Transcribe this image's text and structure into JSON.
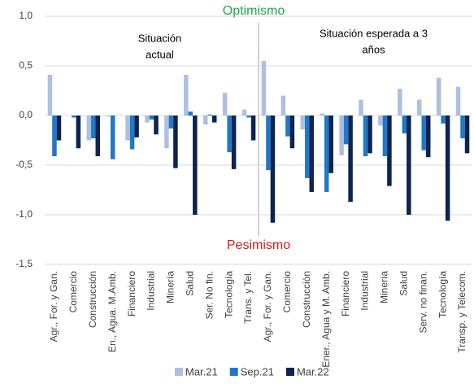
{
  "chart_data": {
    "type": "bar",
    "annotations": {
      "top": "Optimismo",
      "bottom": "Pesimismo",
      "top_color": "#1fa84a",
      "bottom_color": "#e0161b"
    },
    "panel_titles": [
      [
        "Situación",
        "actual"
      ],
      [
        "Situación esperada a 3",
        "años"
      ]
    ],
    "categories": [
      "Agr., For. y Gan.",
      "Comercio",
      "Construcción",
      "En., Agua. M.Amb.",
      "Financiero",
      "Industrial",
      "Minería",
      "Salud",
      "Ser. No fin.",
      "Tecnología",
      "Trans. y Tel.",
      "Agr., For. y Gan.",
      "Comercio",
      "Construcción",
      "Ener., Agua y M. Amb.",
      "Financiero",
      "Industrial",
      "Minería",
      "Salud",
      "Serv. no finan.",
      "Tecnología",
      "Transp. y Telecom."
    ],
    "series": [
      {
        "name": "Mar.21",
        "color": "#aebfe0",
        "values": [
          0.41,
          0,
          -0.25,
          -0.01,
          -0.25,
          -0.07,
          -0.33,
          0.41,
          -0.09,
          0.23,
          0.06,
          0.55,
          0.2,
          -0.14,
          0.02,
          -0.4,
          0.16,
          -0.1,
          0.27,
          0.16,
          0.38,
          0.29
        ]
      },
      {
        "name": "Sep.21",
        "color": "#1f78c8",
        "values": [
          -0.41,
          -0.02,
          -0.23,
          -0.44,
          -0.34,
          -0.04,
          -0.13,
          0.04,
          0.01,
          -0.37,
          -0.02,
          -0.55,
          -0.21,
          -0.63,
          -0.77,
          -0.29,
          -0.41,
          -0.41,
          -0.18,
          -0.35,
          -0.08,
          -0.23
        ]
      },
      {
        "name": "Mar.22",
        "color": "#0d2350",
        "values": [
          -0.25,
          -0.33,
          -0.41,
          0,
          -0.22,
          -0.19,
          -0.53,
          -1.0,
          -0.07,
          -0.54,
          -0.25,
          -1.08,
          -0.33,
          -0.77,
          -0.58,
          -0.87,
          -0.38,
          -0.71,
          -1.0,
          -0.42,
          -1.06,
          -0.38
        ]
      }
    ],
    "ylim": [
      -1.5,
      1.0
    ],
    "yticks": [
      {
        "value": 1.0,
        "label": "1,0"
      },
      {
        "value": 0.5,
        "label": "0,5"
      },
      {
        "value": 0,
        "label": "0,0"
      },
      {
        "value": -0.5,
        "label": "-0,5"
      },
      {
        "value": -1.0,
        "label": "-1,0"
      },
      {
        "value": -1.5,
        "label": "-1,5"
      }
    ],
    "grid": true
  }
}
